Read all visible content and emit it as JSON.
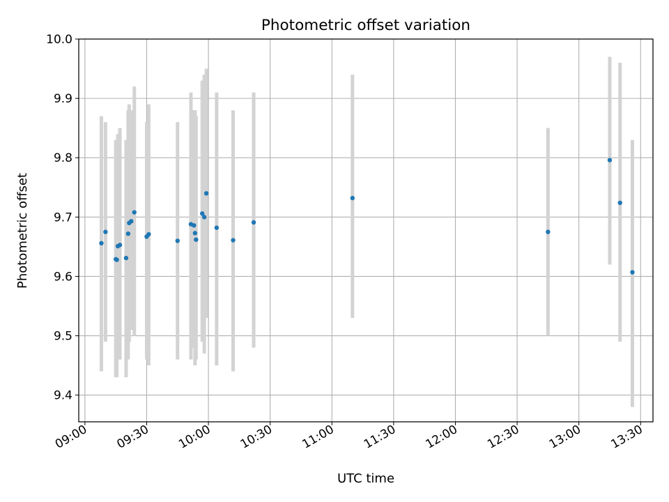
{
  "chart_data": {
    "type": "scatter",
    "title": "Photometric offset variation",
    "xlabel": "UTC time",
    "ylabel": "Photometric offset",
    "xlim": [
      "08:57",
      "13:36"
    ],
    "ylim": [
      9.355,
      10.0
    ],
    "xticks": [
      "09:00",
      "09:30",
      "10:00",
      "10:30",
      "11:00",
      "11:30",
      "12:00",
      "12:30",
      "13:00",
      "13:30"
    ],
    "yticks": [
      "9.4",
      "9.5",
      "9.6",
      "9.7",
      "9.8",
      "9.9",
      "10.0"
    ],
    "grid": true,
    "legend": "none",
    "marker_color": "#1f77b4",
    "errorbar_color": "#d3d3d3",
    "series": [
      {
        "points": [
          {
            "x": "09:08",
            "y": 9.656,
            "ylow": 9.44,
            "yhigh": 9.87
          },
          {
            "x": "09:10",
            "y": 9.675,
            "ylow": 9.49,
            "yhigh": 9.86
          },
          {
            "x": "09:15",
            "y": 9.629,
            "ylow": 9.43,
            "yhigh": 9.83
          },
          {
            "x": "09:15.5",
            "y": 9.628,
            "ylow": 9.43,
            "yhigh": 9.82
          },
          {
            "x": "09:16",
            "y": 9.651,
            "ylow": 9.46,
            "yhigh": 9.84
          },
          {
            "x": "09:17",
            "y": 9.653,
            "ylow": 9.46,
            "yhigh": 9.85
          },
          {
            "x": "09:20",
            "y": 9.631,
            "ylow": 9.43,
            "yhigh": 9.83
          },
          {
            "x": "09:21",
            "y": 9.672,
            "ylow": 9.46,
            "yhigh": 9.88
          },
          {
            "x": "09:21.5",
            "y": 9.69,
            "ylow": 9.49,
            "yhigh": 9.89
          },
          {
            "x": "09:22.5",
            "y": 9.693,
            "ylow": 9.51,
            "yhigh": 9.88
          },
          {
            "x": "09:24",
            "y": 9.708,
            "ylow": 9.5,
            "yhigh": 9.92
          },
          {
            "x": "09:30",
            "y": 9.667,
            "ylow": 9.46,
            "yhigh": 9.86
          },
          {
            "x": "09:31",
            "y": 9.671,
            "ylow": 9.45,
            "yhigh": 9.89
          },
          {
            "x": "09:45",
            "y": 9.66,
            "ylow": 9.46,
            "yhigh": 9.86
          },
          {
            "x": "09:51.5",
            "y": 9.688,
            "ylow": 9.46,
            "yhigh": 9.91
          },
          {
            "x": "09:53",
            "y": 9.686,
            "ylow": 9.48,
            "yhigh": 9.88
          },
          {
            "x": "09:53.5",
            "y": 9.673,
            "ylow": 9.45,
            "yhigh": 9.88
          },
          {
            "x": "09:54",
            "y": 9.662,
            "ylow": 9.46,
            "yhigh": 9.87
          },
          {
            "x": "09:57",
            "y": 9.706,
            "ylow": 9.49,
            "yhigh": 9.93
          },
          {
            "x": "09:58",
            "y": 9.7,
            "ylow": 9.47,
            "yhigh": 9.94
          },
          {
            "x": "09:59",
            "y": 9.74,
            "ylow": 9.53,
            "yhigh": 9.95
          },
          {
            "x": "10:04",
            "y": 9.682,
            "ylow": 9.45,
            "yhigh": 9.91
          },
          {
            "x": "10:12",
            "y": 9.661,
            "ylow": 9.44,
            "yhigh": 9.88
          },
          {
            "x": "10:22",
            "y": 9.691,
            "ylow": 9.48,
            "yhigh": 9.91
          },
          {
            "x": "11:10",
            "y": 9.732,
            "ylow": 9.53,
            "yhigh": 9.94
          },
          {
            "x": "12:45",
            "y": 9.675,
            "ylow": 9.5,
            "yhigh": 9.85
          },
          {
            "x": "13:15",
            "y": 9.796,
            "ylow": 9.62,
            "yhigh": 9.97
          },
          {
            "x": "13:20",
            "y": 9.724,
            "ylow": 9.49,
            "yhigh": 9.96
          },
          {
            "x": "13:26",
            "y": 9.607,
            "ylow": 9.38,
            "yhigh": 9.83
          }
        ]
      }
    ]
  }
}
